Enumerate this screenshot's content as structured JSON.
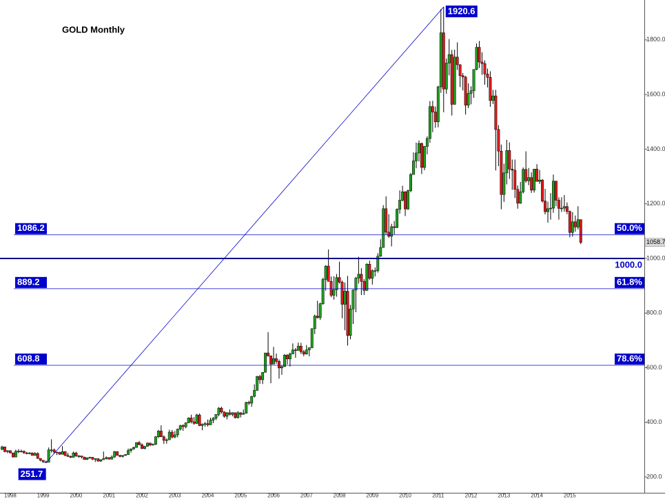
{
  "chart_data": {
    "type": "candlestick",
    "title": "GOLD Monthly",
    "categories": [
      null,
      null,
      null,
      "1998",
      null,
      null,
      null,
      null,
      null,
      null,
      null,
      null,
      null,
      null,
      null,
      "1999",
      null,
      null,
      null,
      null,
      null,
      null,
      null,
      null,
      null,
      null,
      null,
      "2000",
      null,
      null,
      null,
      null,
      null,
      null,
      null,
      null,
      null,
      null,
      null,
      "2001",
      null,
      null,
      null,
      null,
      null,
      null,
      null,
      null,
      null,
      null,
      null,
      "2002",
      null,
      null,
      null,
      null,
      null,
      null,
      null,
      null,
      null,
      null,
      null,
      "2003",
      null,
      null,
      null,
      null,
      null,
      null,
      null,
      null,
      null,
      null,
      null,
      "2004",
      null,
      null,
      null,
      null,
      null,
      null,
      null,
      null,
      null,
      null,
      null,
      "2005",
      null,
      null,
      null,
      null,
      null,
      null,
      null,
      null,
      null,
      null,
      null,
      "2006",
      null,
      null,
      null,
      null,
      null,
      null,
      null,
      null,
      null,
      null,
      null,
      "2007",
      null,
      null,
      null,
      null,
      null,
      null,
      null,
      null,
      null,
      null,
      null,
      "2008",
      null,
      null,
      null,
      null,
      null,
      null,
      null,
      null,
      null,
      null,
      null,
      "2009",
      null,
      null,
      null,
      null,
      null,
      null,
      null,
      null,
      null,
      null,
      null,
      "2010",
      null,
      null,
      null,
      null,
      null,
      null,
      null,
      null,
      null,
      null,
      null,
      "2011",
      null,
      null,
      null,
      null,
      null,
      null,
      null,
      null,
      null,
      null,
      null,
      "2012",
      null,
      null,
      null,
      null,
      null,
      null,
      null,
      null,
      null,
      null,
      null,
      "2013",
      null,
      null,
      null,
      null,
      null,
      null,
      null,
      null,
      null,
      null,
      null,
      "2014",
      null,
      null,
      null,
      null,
      null,
      null,
      null,
      null,
      null,
      null,
      null,
      "2015",
      null,
      null,
      null,
      null
    ],
    "ohlc": [
      [
        301,
        314,
        298,
        310
      ],
      [
        310,
        311,
        290,
        293
      ],
      [
        293,
        298,
        287,
        296
      ],
      [
        296,
        298,
        286,
        288
      ],
      [
        288,
        289,
        271,
        273
      ],
      [
        273,
        300,
        272,
        294
      ],
      [
        294,
        302,
        287,
        292
      ],
      [
        292,
        300,
        290,
        294
      ],
      [
        294,
        297,
        285,
        288
      ],
      [
        288,
        292,
        283,
        287
      ],
      [
        287,
        291,
        283,
        288
      ],
      [
        288,
        290,
        278,
        279
      ],
      [
        279,
        291,
        278,
        286
      ],
      [
        286,
        290,
        266,
        268
      ],
      [
        268,
        268,
        257,
        261
      ],
      [
        261,
        262,
        252,
        255
      ],
      [
        255,
        260,
        251.7,
        254
      ],
      [
        254,
        308,
        253,
        299
      ],
      [
        299,
        338,
        289,
        299
      ],
      [
        299,
        304,
        285,
        291
      ],
      [
        291,
        292,
        280,
        290
      ],
      [
        290,
        292,
        281,
        283
      ],
      [
        283,
        313,
        282,
        293
      ],
      [
        293,
        294,
        276,
        279
      ],
      [
        279,
        288,
        273,
        275
      ],
      [
        275,
        278,
        269,
        272
      ],
      [
        272,
        293,
        271,
        288
      ],
      [
        288,
        292,
        274,
        277
      ],
      [
        277,
        280,
        270,
        277
      ],
      [
        277,
        277,
        268,
        273
      ],
      [
        273,
        274,
        263,
        264
      ],
      [
        264,
        272,
        262,
        270
      ],
      [
        270,
        274,
        267,
        272
      ],
      [
        272,
        273,
        262,
        265
      ],
      [
        265,
        268,
        255,
        267
      ],
      [
        267,
        268,
        256,
        258
      ],
      [
        258,
        265,
        255,
        263
      ],
      [
        263,
        293,
        263,
        267
      ],
      [
        267,
        275,
        264,
        271
      ],
      [
        271,
        272,
        264,
        265
      ],
      [
        265,
        279,
        264,
        273
      ],
      [
        273,
        295,
        270,
        293
      ],
      [
        293,
        294,
        278,
        279
      ],
      [
        279,
        281,
        272,
        275
      ],
      [
        275,
        280,
        271,
        279
      ],
      [
        279,
        283,
        277,
        282
      ],
      [
        282,
        304,
        281,
        297
      ],
      [
        297,
        304,
        289,
        303
      ],
      [
        303,
        311,
        299,
        308
      ],
      [
        308,
        327,
        307,
        326
      ],
      [
        326,
        332,
        316,
        318
      ],
      [
        318,
        323,
        302,
        304
      ],
      [
        304,
        314,
        301,
        312
      ],
      [
        312,
        326,
        311,
        324
      ],
      [
        324,
        325,
        313,
        317
      ],
      [
        317,
        323,
        315,
        319
      ],
      [
        319,
        350,
        317,
        347
      ],
      [
        347,
        372,
        342,
        368
      ],
      [
        368,
        389,
        346,
        347
      ],
      [
        347,
        352,
        321,
        334
      ],
      [
        334,
        341,
        322,
        336
      ],
      [
        336,
        373,
        335,
        364
      ],
      [
        364,
        372,
        341,
        346
      ],
      [
        346,
        368,
        342,
        354
      ],
      [
        354,
        377,
        345,
        375
      ],
      [
        375,
        391,
        370,
        388
      ],
      [
        388,
        393,
        369,
        384
      ],
      [
        384,
        400,
        378,
        398
      ],
      [
        398,
        418,
        397,
        416
      ],
      [
        416,
        428,
        396,
        402
      ],
      [
        402,
        419,
        391,
        396
      ],
      [
        396,
        431,
        394,
        427
      ],
      [
        427,
        432,
        386,
        388
      ],
      [
        388,
        396,
        371,
        393
      ],
      [
        393,
        401,
        384,
        395
      ],
      [
        395,
        410,
        385,
        391
      ],
      [
        391,
        417,
        390,
        408
      ],
      [
        408,
        419,
        397,
        415
      ],
      [
        415,
        430,
        408,
        429
      ],
      [
        429,
        456,
        422,
        452
      ],
      [
        452,
        457,
        432,
        438
      ],
      [
        438,
        440,
        417,
        422
      ],
      [
        422,
        437,
        411,
        435
      ],
      [
        435,
        447,
        425,
        429
      ],
      [
        429,
        437,
        422,
        435
      ],
      [
        435,
        436,
        414,
        417
      ],
      [
        417,
        441,
        414,
        435
      ],
      [
        435,
        437,
        418,
        429
      ],
      [
        429,
        447,
        428,
        433
      ],
      [
        433,
        475,
        433,
        473
      ],
      [
        473,
        479,
        463,
        470
      ],
      [
        470,
        497,
        457,
        495
      ],
      [
        495,
        539,
        491,
        517
      ],
      [
        517,
        570,
        515,
        568
      ],
      [
        568,
        574,
        541,
        556
      ],
      [
        556,
        584,
        540,
        583
      ],
      [
        583,
        654,
        582,
        654
      ],
      [
        654,
        730,
        641,
        643
      ],
      [
        643,
        645,
        543,
        613
      ],
      [
        613,
        676,
        613,
        633
      ],
      [
        633,
        652,
        614,
        623
      ],
      [
        623,
        630,
        560,
        599
      ],
      [
        599,
        609,
        574,
        604
      ],
      [
        604,
        650,
        603,
        646
      ],
      [
        646,
        650,
        612,
        632
      ],
      [
        632,
        655,
        604,
        651
      ],
      [
        651,
        689,
        649,
        665
      ],
      [
        665,
        672,
        636,
        663
      ],
      [
        663,
        692,
        663,
        679
      ],
      [
        679,
        691,
        650,
        658
      ],
      [
        658,
        665,
        642,
        650
      ],
      [
        650,
        683,
        648,
        665
      ],
      [
        665,
        675,
        642,
        673
      ],
      [
        673,
        744,
        671,
        743
      ],
      [
        743,
        794,
        723,
        789
      ],
      [
        789,
        845,
        780,
        783
      ],
      [
        783,
        838,
        775,
        834
      ],
      [
        834,
        929,
        830,
        923
      ],
      [
        923,
        975,
        882,
        972
      ],
      [
        972,
        1033,
        915,
        916
      ],
      [
        916,
        934,
        858,
        865
      ],
      [
        865,
        935,
        849,
        885
      ],
      [
        885,
        943,
        860,
        930
      ],
      [
        930,
        988,
        908,
        913
      ],
      [
        913,
        919,
        781,
        832
      ],
      [
        832,
        912,
        737,
        880
      ],
      [
        880,
        936,
        681,
        718
      ],
      [
        718,
        830,
        704,
        815
      ],
      [
        815,
        887,
        760,
        884
      ],
      [
        884,
        932,
        803,
        928
      ],
      [
        928,
        1006,
        908,
        942
      ],
      [
        942,
        964,
        866,
        916
      ],
      [
        916,
        924,
        866,
        883
      ],
      [
        883,
        982,
        881,
        979
      ],
      [
        979,
        992,
        922,
        927
      ],
      [
        927,
        960,
        904,
        955
      ],
      [
        955,
        967,
        934,
        955
      ],
      [
        955,
        1019,
        948,
        1008
      ],
      [
        1008,
        1070,
        1006,
        1040
      ],
      [
        1040,
        1195,
        1039,
        1182
      ],
      [
        1182,
        1227,
        1086,
        1096
      ],
      [
        1096,
        1162,
        1075,
        1081
      ],
      [
        1081,
        1127,
        1044,
        1116
      ],
      [
        1116,
        1137,
        1088,
        1113
      ],
      [
        1113,
        1183,
        1111,
        1180
      ],
      [
        1180,
        1249,
        1164,
        1213
      ],
      [
        1213,
        1266,
        1209,
        1244
      ],
      [
        1244,
        1246,
        1155,
        1181
      ],
      [
        1181,
        1252,
        1178,
        1248
      ],
      [
        1248,
        1313,
        1242,
        1307
      ],
      [
        1307,
        1388,
        1307,
        1357
      ],
      [
        1357,
        1424,
        1330,
        1386
      ],
      [
        1386,
        1432,
        1355,
        1421
      ],
      [
        1421,
        1424,
        1309,
        1333
      ],
      [
        1333,
        1412,
        1323,
        1410
      ],
      [
        1410,
        1447,
        1381,
        1439
      ],
      [
        1439,
        1576,
        1423,
        1556
      ],
      [
        1556,
        1577,
        1462,
        1536
      ],
      [
        1536,
        1556,
        1478,
        1500
      ],
      [
        1500,
        1632,
        1480,
        1628
      ],
      [
        1628,
        1913,
        1606,
        1826
      ],
      [
        1826,
        1920.6,
        1535,
        1620
      ],
      [
        1620,
        1732,
        1603,
        1715
      ],
      [
        1715,
        1803,
        1670,
        1746
      ],
      [
        1746,
        1763,
        1523,
        1564
      ],
      [
        1564,
        1764,
        1563,
        1737
      ],
      [
        1737,
        1791,
        1690,
        1709
      ],
      [
        1709,
        1711,
        1627,
        1669
      ],
      [
        1669,
        1679,
        1615,
        1664
      ],
      [
        1664,
        1668,
        1527,
        1561
      ],
      [
        1561,
        1641,
        1550,
        1604
      ],
      [
        1604,
        1630,
        1564,
        1614
      ],
      [
        1614,
        1692,
        1588,
        1692
      ],
      [
        1692,
        1787,
        1689,
        1773
      ],
      [
        1773,
        1796,
        1697,
        1719
      ],
      [
        1719,
        1755,
        1672,
        1713
      ],
      [
        1713,
        1725,
        1636,
        1675
      ],
      [
        1675,
        1695,
        1626,
        1663
      ],
      [
        1663,
        1685,
        1555,
        1578
      ],
      [
        1578,
        1617,
        1565,
        1595
      ],
      [
        1595,
        1617,
        1322,
        1472
      ],
      [
        1472,
        1488,
        1338,
        1393
      ],
      [
        1393,
        1417,
        1180,
        1234
      ],
      [
        1234,
        1347,
        1207,
        1313
      ],
      [
        1313,
        1434,
        1271,
        1395
      ],
      [
        1395,
        1425,
        1291,
        1327
      ],
      [
        1327,
        1362,
        1251,
        1323
      ],
      [
        1323,
        1362,
        1221,
        1253
      ],
      [
        1253,
        1267,
        1182,
        1202
      ],
      [
        1202,
        1280,
        1200,
        1244
      ],
      [
        1244,
        1333,
        1238,
        1326
      ],
      [
        1326,
        1392,
        1277,
        1284
      ],
      [
        1284,
        1331,
        1268,
        1296
      ],
      [
        1296,
        1315,
        1240,
        1250
      ],
      [
        1250,
        1327,
        1241,
        1327
      ],
      [
        1327,
        1345,
        1281,
        1282
      ],
      [
        1282,
        1324,
        1273,
        1287
      ],
      [
        1287,
        1290,
        1204,
        1210
      ],
      [
        1210,
        1255,
        1161,
        1171
      ],
      [
        1171,
        1208,
        1131,
        1182
      ],
      [
        1182,
        1239,
        1142,
        1184
      ],
      [
        1184,
        1307,
        1167,
        1283
      ],
      [
        1283,
        1284,
        1191,
        1213
      ],
      [
        1213,
        1224,
        1142,
        1183
      ],
      [
        1183,
        1224,
        1170,
        1184
      ],
      [
        1184,
        1232,
        1171,
        1190
      ],
      [
        1190,
        1205,
        1162,
        1172
      ],
      [
        1172,
        1175,
        1077,
        1095
      ],
      [
        1095,
        1170,
        1080,
        1134
      ],
      [
        1134,
        1157,
        1098,
        1115
      ],
      [
        1115,
        1191,
        1106,
        1142
      ],
      [
        1142,
        1143,
        1052,
        1058.7
      ]
    ],
    "up_color": "#1f9e1f",
    "down_color": "#e0191a",
    "ylim": [
      142,
      1946
    ],
    "yticks": [
      {
        "value": 200,
        "label": "200.0"
      },
      {
        "value": 400,
        "label": "400.0"
      },
      {
        "value": 600,
        "label": "600.0"
      },
      {
        "value": 800,
        "label": "800.0"
      },
      {
        "value": 1000,
        "label": "1000.0"
      },
      {
        "value": 1200,
        "label": "1200.0"
      },
      {
        "value": 1400,
        "label": "1400.0"
      },
      {
        "value": 1600,
        "label": "1600.0"
      },
      {
        "value": 1800,
        "label": "1800.0"
      }
    ],
    "swing_high": 1920.6,
    "swing_low": 251.7,
    "fib_levels": [
      {
        "price": 1086.2,
        "ratio": "50.0%"
      },
      {
        "price": 889.2,
        "ratio": "61.8%"
      },
      {
        "price": 608.8,
        "ratio": "78.6%"
      }
    ],
    "level_line": {
      "value": 1000,
      "label": "1000.0"
    },
    "last_price": 1058.7,
    "annotation_color": "#0000cc"
  }
}
